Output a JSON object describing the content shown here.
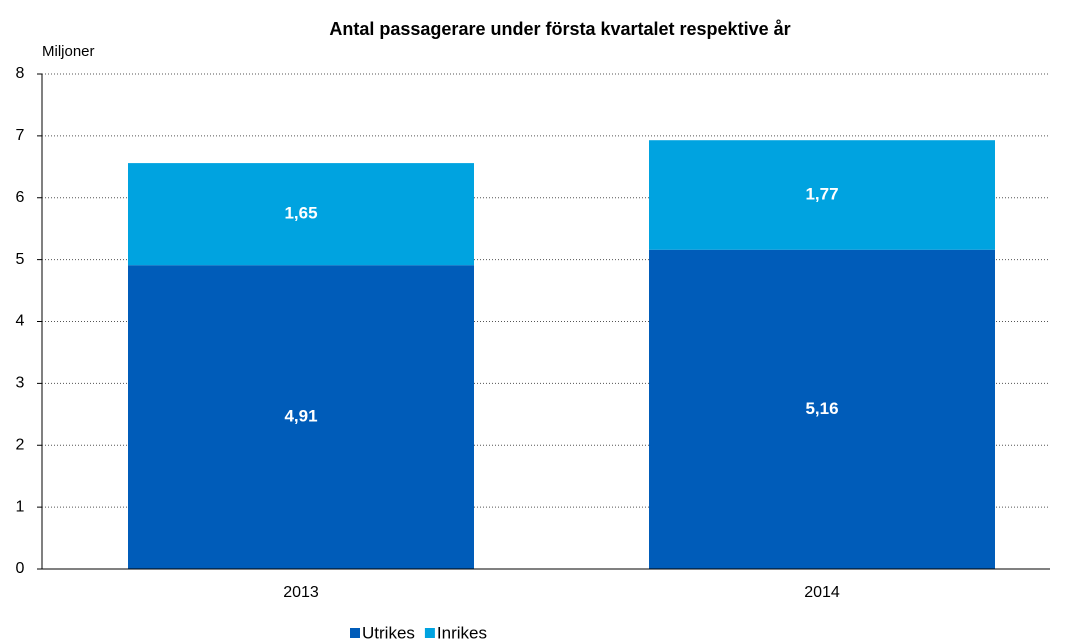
{
  "chart_data": {
    "type": "stacked_bar",
    "title": "Antal passagerare under första kvartalet respektive år",
    "y_axis_label": "Miljoner",
    "categories": [
      "2013",
      "2014"
    ],
    "series": [
      {
        "name": "Utrikes",
        "color": "#005cb9",
        "values": [
          4.91,
          5.16
        ],
        "value_labels": [
          "4,91",
          "5,16"
        ]
      },
      {
        "name": "Inrikes",
        "color": "#00a3e0",
        "values": [
          1.65,
          1.77
        ],
        "value_labels": [
          "1,65",
          "1,77"
        ]
      }
    ],
    "ylim": [
      0,
      8
    ],
    "yticks": [
      0,
      1,
      2,
      3,
      4,
      5,
      6,
      7,
      8
    ],
    "grid": true,
    "legend": "bottom"
  }
}
